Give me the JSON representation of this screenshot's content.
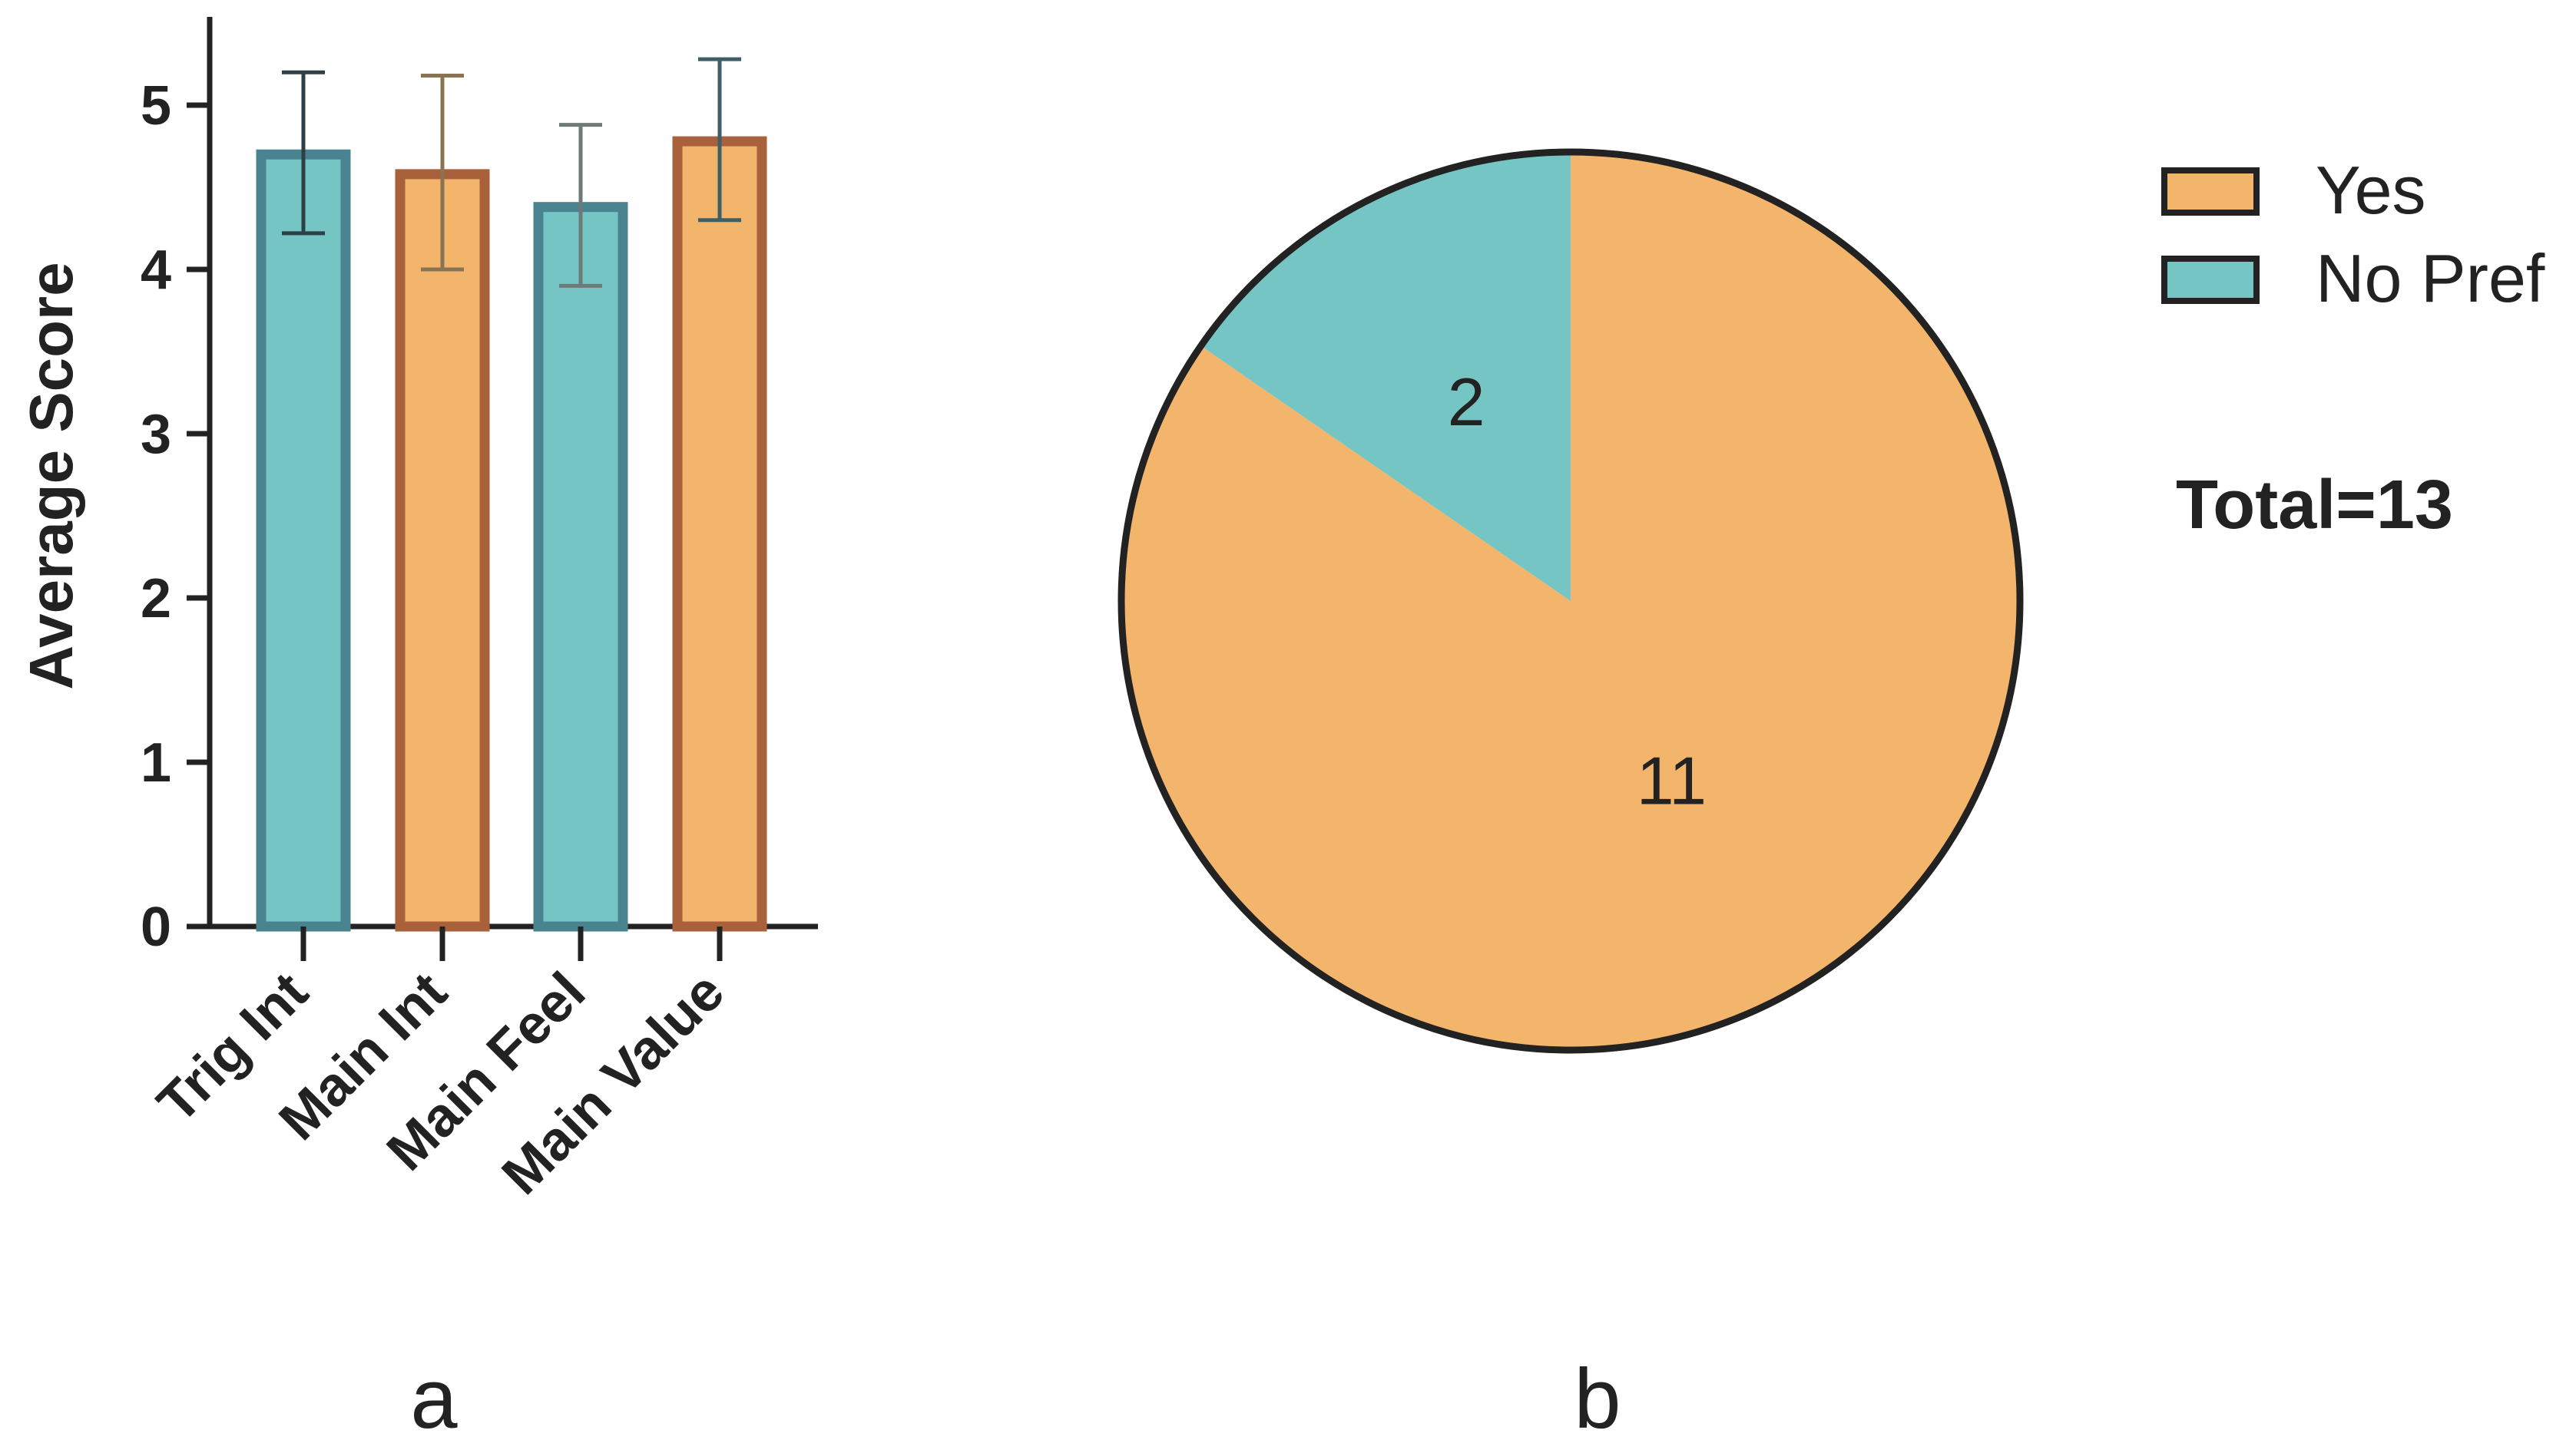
{
  "chart_data": [
    {
      "type": "bar",
      "panel_label": "a",
      "categories": [
        "Trig Int",
        "Main Int",
        "Main Feel",
        "Main Value"
      ],
      "values": [
        4.7,
        4.58,
        4.38,
        4.78
      ],
      "error_high": [
        5.2,
        5.18,
        4.88,
        5.28
      ],
      "error_low": [
        4.22,
        4.0,
        3.9,
        4.3
      ],
      "ylabel": "Average Score",
      "ylim": [
        0,
        5.5
      ],
      "yticks": [
        "0",
        "1",
        "2",
        "3",
        "4",
        "5"
      ],
      "grid": false,
      "colors": {
        "fill": [
          "#76C5C5",
          "#F3B46B",
          "#76C5C5",
          "#F3B46B"
        ],
        "stroke": [
          "#4A8390",
          "#A8613A",
          "#4A8390",
          "#A8613A"
        ],
        "error": [
          "#2E3F45",
          "#8A7352",
          "#6E7A78",
          "#3E5F66"
        ]
      }
    },
    {
      "type": "pie",
      "panel_label": "b",
      "slices": [
        {
          "label": "Yes",
          "value": 11,
          "display": "11",
          "color": "#F3B46B"
        },
        {
          "label": "No Pref",
          "value": 2,
          "display": "2",
          "color": "#76C5C5"
        }
      ],
      "legend": [
        "Yes",
        "No Pref"
      ],
      "legend_position": "top-right",
      "annotation": "Total=13",
      "outline_color": "#222222"
    }
  ]
}
